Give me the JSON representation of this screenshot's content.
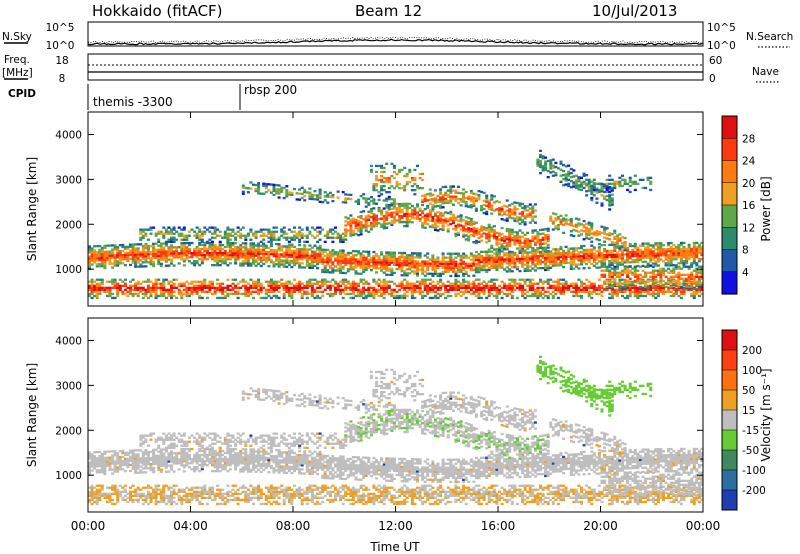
{
  "header": {
    "station": "Hokkaido (fitACF)",
    "beam": "Beam 12",
    "date": "10/Jul/2013"
  },
  "top_panels": {
    "nsky_label": "N.Sky",
    "nsearch_label": "N.Search",
    "count_ticks": [
      "10^5",
      "10^0"
    ],
    "freq_label_1": "Freq.",
    "freq_label_2": "[MHz]",
    "freq_ticks": [
      "18",
      "8"
    ],
    "nave_label": "Nave",
    "nave_ticks": [
      "60",
      "0"
    ],
    "cpid_label": "CPID",
    "cpid_entries": [
      "themis -3300",
      "rbsp 200"
    ]
  },
  "chart_data": [
    {
      "type": "heatmap",
      "name": "power",
      "ylabel": "Slant Range [km]",
      "xlabel": "",
      "ylim": [
        180,
        4500
      ],
      "yticks": [
        "1000",
        "2000",
        "3000",
        "4000"
      ],
      "xticks": [
        "00:00",
        "04:00",
        "08:00",
        "12:00",
        "16:00",
        "20:00",
        "00:00"
      ],
      "colorbar_label": "Power [dB]",
      "colorbar_ticks": [
        "28",
        "24",
        "20",
        "16",
        "12",
        "8",
        "4"
      ],
      "colors": [
        "#1010e0",
        "#1f5aa8",
        "#2e8c6e",
        "#5fa84a",
        "#f0a020",
        "#ff7a10",
        "#ff3a10",
        "#e01010"
      ]
    },
    {
      "type": "heatmap",
      "name": "velocity",
      "ylabel": "Slant Range [km]",
      "xlabel": "Time UT",
      "ylim": [
        180,
        4500
      ],
      "yticks": [
        "1000",
        "2000",
        "3000",
        "4000"
      ],
      "xticks": [
        "00:00",
        "04:00",
        "08:00",
        "12:00",
        "16:00",
        "20:00",
        "00:00"
      ],
      "colorbar_label": "Velocity [m s⁻¹]",
      "colorbar_ticks": [
        "200",
        "100",
        "50",
        "15",
        "-15",
        "-50",
        "-100",
        "-200"
      ],
      "colors": [
        "#1e3fb0",
        "#2b6fa0",
        "#3e8a5a",
        "#66cc33",
        "#bebebe",
        "#f0a020",
        "#ff7010",
        "#ff4010",
        "#e01010"
      ]
    }
  ]
}
